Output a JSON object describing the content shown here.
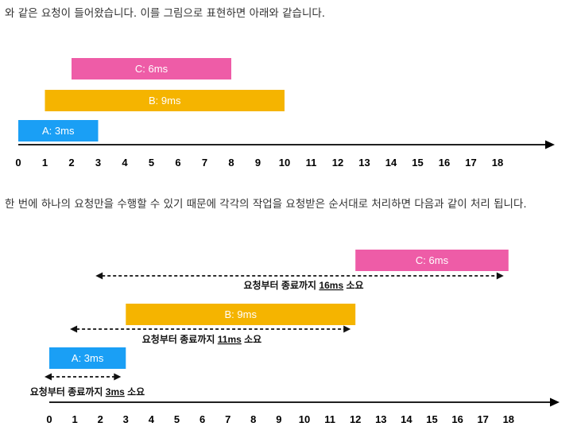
{
  "text": {
    "intro": "와 같은 요청이 들어왔습니다. 이를 그림으로 표현하면 아래와 같습니다.",
    "explanation": "한 번에 하나의 요청만을 수행할 수 있기 때문에 각각의 작업을 요청받은 순서대로 처리하면 다음과 같이 처리 됩니다."
  },
  "colors": {
    "A": "#1a9ff5",
    "B": "#f5b400",
    "C": "#ee5ca7",
    "axis": "#000000"
  },
  "diagram1": {
    "ticks": [
      "0",
      "1",
      "2",
      "3",
      "4",
      "5",
      "6",
      "7",
      "8",
      "9",
      "10",
      "11",
      "12",
      "13",
      "14",
      "15",
      "16",
      "17",
      "18"
    ],
    "bars": [
      {
        "id": "C",
        "label": "C: 6ms",
        "start": 2,
        "end": 8
      },
      {
        "id": "B",
        "label": "B: 9ms",
        "start": 1,
        "end": 10
      },
      {
        "id": "A",
        "label": "A: 3ms",
        "start": 0,
        "end": 3
      }
    ]
  },
  "diagram2": {
    "ticks": [
      "0",
      "1",
      "2",
      "3",
      "4",
      "5",
      "6",
      "7",
      "8",
      "9",
      "10",
      "11",
      "12",
      "13",
      "14",
      "15",
      "16",
      "17",
      "18"
    ],
    "bars": [
      {
        "id": "C",
        "label": "C: 6ms",
        "start": 12,
        "end": 18
      },
      {
        "id": "B",
        "label": "B: 9ms",
        "start": 3,
        "end": 12
      },
      {
        "id": "A",
        "label": "A: 3ms",
        "start": 0,
        "end": 3
      }
    ],
    "spans": [
      {
        "id": "C",
        "from": 2,
        "to": 18,
        "prefix": "요청부터 종료까지 ",
        "value": "16ms",
        "suffix": " 소요"
      },
      {
        "id": "B",
        "from": 1,
        "to": 12,
        "prefix": "요청부터 종료까지 ",
        "value": "11ms",
        "suffix": " 소요"
      },
      {
        "id": "A",
        "from": 0,
        "to": 3,
        "prefix": "요청부터 종료까지 ",
        "value": "3ms",
        "suffix": " 소요"
      }
    ]
  }
}
